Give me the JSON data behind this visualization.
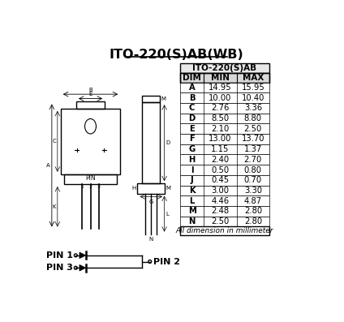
{
  "title": "ITO-220(S)AB(WB)",
  "table_title": "ITO-220(S)AB",
  "columns": [
    "DIM",
    "MIN",
    "MAX"
  ],
  "rows": [
    [
      "A",
      "14.95",
      "15.95"
    ],
    [
      "B",
      "10.00",
      "10.40"
    ],
    [
      "C",
      "2.76",
      "3.36"
    ],
    [
      "D",
      "8.50",
      "8.80"
    ],
    [
      "E",
      "2.10",
      "2.50"
    ],
    [
      "F",
      "13.00",
      "13.70"
    ],
    [
      "G",
      "1.15",
      "1.37"
    ],
    [
      "H",
      "2.40",
      "2.70"
    ],
    [
      "I",
      "0.50",
      "0.80"
    ],
    [
      "J",
      "0.45",
      "0.70"
    ],
    [
      "K",
      "3.00",
      "3.30"
    ],
    [
      "L",
      "4.46",
      "4.87"
    ],
    [
      "M",
      "2.48",
      "2.80"
    ],
    [
      "N",
      "2.50",
      "2.80"
    ]
  ],
  "footer": "All dimension in millimeter",
  "bg_color": "#ffffff",
  "text_color": "#000000",
  "pin1_label": "PIN 1",
  "pin2_label": "PIN 2",
  "pin3_label": "PIN 3"
}
